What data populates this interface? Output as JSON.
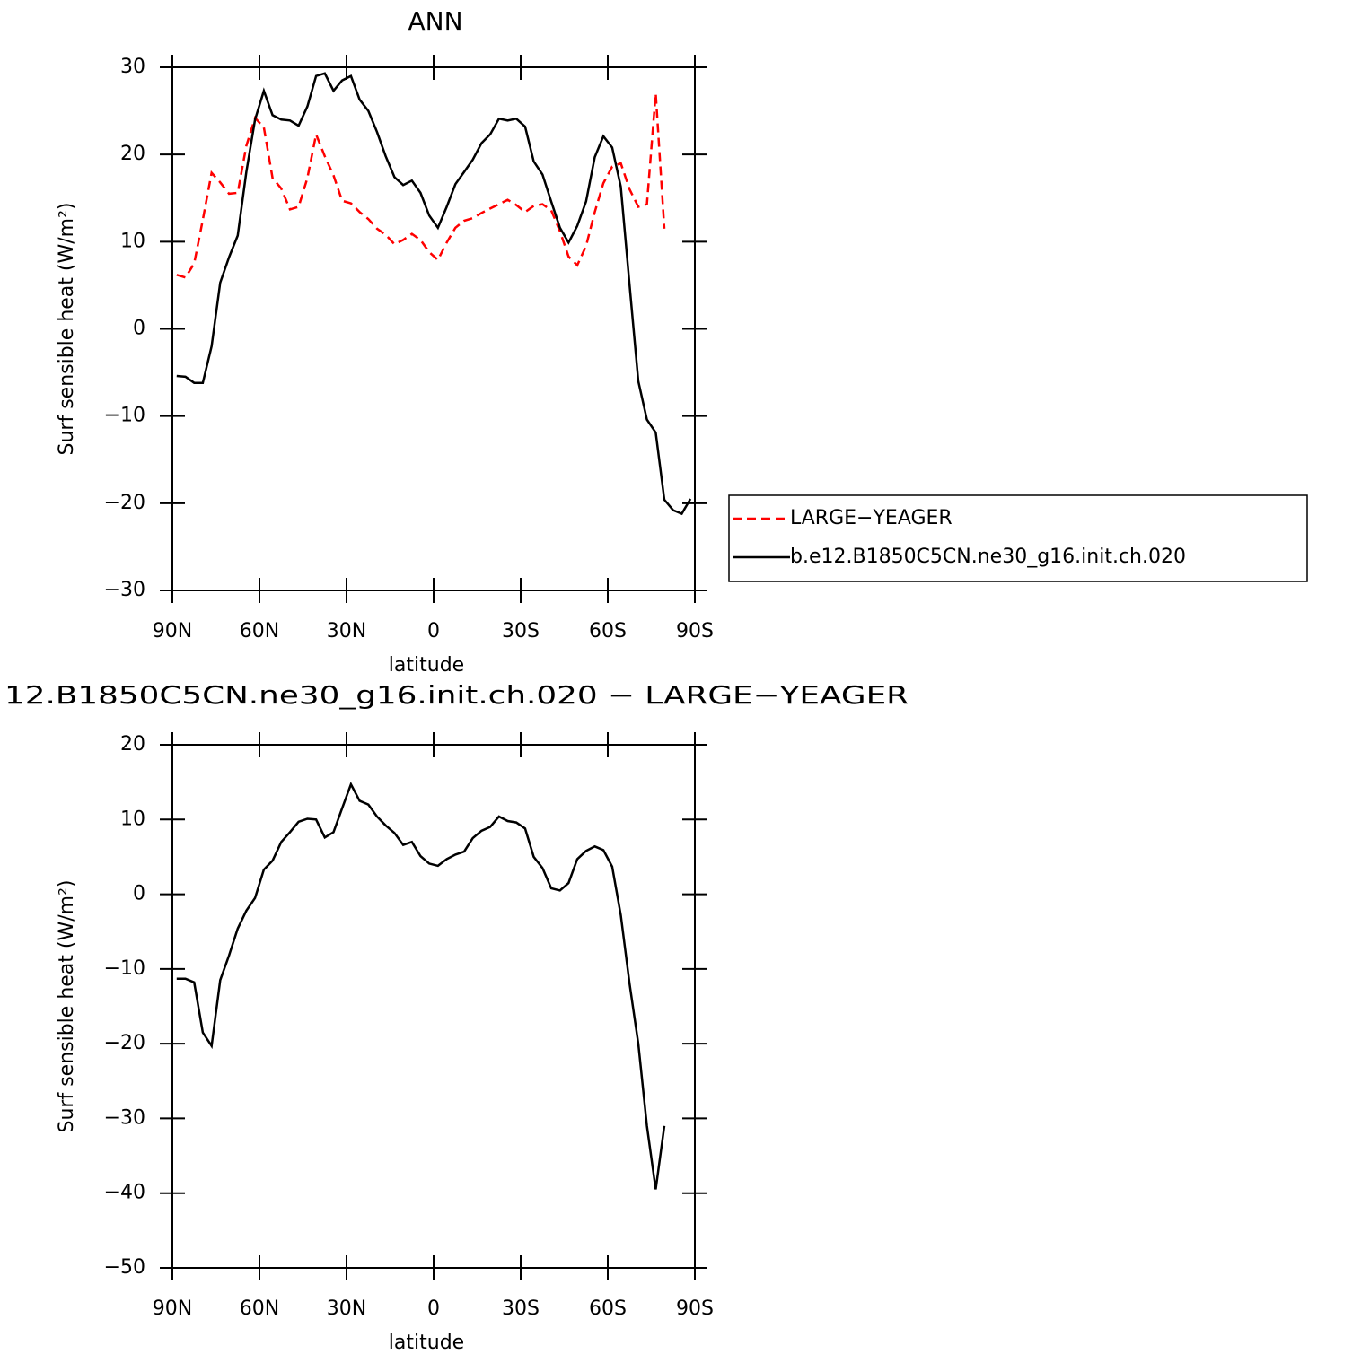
{
  "chart_data": [
    {
      "type": "line",
      "title": "ANN",
      "x_label": "latitude",
      "y_label": "Surf sensible heat (W/m²)",
      "x": [
        88.5,
        85.5,
        82.5,
        79.5,
        76.5,
        73.5,
        70.5,
        67.5,
        64.5,
        61.5,
        58.5,
        55.5,
        52.5,
        49.5,
        46.5,
        43.5,
        40.5,
        37.5,
        34.5,
        31.5,
        28.5,
        25.5,
        22.5,
        19.5,
        16.5,
        13.5,
        10.5,
        7.5,
        4.5,
        1.5,
        -1.5,
        -4.5,
        -7.5,
        -10.5,
        -13.5,
        -16.5,
        -19.5,
        -22.5,
        -25.5,
        -28.5,
        -31.5,
        -34.5,
        -37.5,
        -40.5,
        -43.5,
        -46.5,
        -49.5,
        -52.5,
        -55.5,
        -58.5,
        -61.5,
        -64.5,
        -67.5,
        -70.5,
        -73.5,
        -76.5,
        -79.5,
        -82.5,
        -85.5,
        -88.5
      ],
      "series": [
        {
          "name": "LARGE−YEAGER",
          "color": "#ff0000",
          "linestyle": "dashed",
          "values": [
            6.2,
            5.9,
            7.5,
            12.5,
            17.9,
            16.8,
            15.5,
            15.6,
            21,
            24.2,
            23.1,
            17.3,
            16.1,
            13.7,
            14,
            17.3,
            22.3,
            19.8,
            17.6,
            14.7,
            14.4,
            13.4,
            12.6,
            11.5,
            10.8,
            9.7,
            10.2,
            10.9,
            10.2,
            8.8,
            7.9,
            9.9,
            11.6,
            12.4,
            12.7,
            13.3,
            13.8,
            14.3,
            14.8,
            14.2,
            13.4,
            14.1,
            14.3,
            13.6,
            11.2,
            8.3,
            7.3,
            9.5,
            13.4,
            16.7,
            18.6,
            19,
            16,
            14,
            14.3,
            27,
            11.5,
            null,
            null,
            null
          ]
        },
        {
          "name": "b.e12.B1850C5CN.ne30_g16.init.ch.020",
          "color": "#000000",
          "linestyle": "solid",
          "values": [
            -5.4,
            -5.5,
            -6.2,
            -6.2,
            -2,
            5.3,
            8.2,
            10.7,
            18,
            24,
            27.3,
            24.5,
            24,
            23.9,
            23.3,
            25.5,
            29,
            29.3,
            27.3,
            28.5,
            29,
            26.3,
            25,
            22.6,
            19.8,
            17.4,
            16.5,
            17,
            15.6,
            13,
            11.6,
            14,
            16.6,
            18,
            19.4,
            21.3,
            22.3,
            24.1,
            23.9,
            24.1,
            23.2,
            19.2,
            17.7,
            14.6,
            11.6,
            9.9,
            11.8,
            14.6,
            19.7,
            22.1,
            20.8,
            16.3,
            5,
            -6,
            -10.4,
            -11.9,
            -19.6,
            -20.8,
            -21.2,
            -19.5
          ]
        }
      ],
      "xlim": [
        90,
        -90
      ],
      "xticks": [
        {
          "value": 90,
          "label": "90N"
        },
        {
          "value": 60,
          "label": "60N"
        },
        {
          "value": 30,
          "label": "30N"
        },
        0,
        {
          "value": -30,
          "label": "30S"
        },
        {
          "value": -60,
          "label": "60S"
        },
        {
          "value": -90,
          "label": "90S"
        }
      ],
      "ylim": [
        -30,
        30
      ],
      "yticks": [
        {
          "value": -30,
          "label": "−30"
        },
        {
          "value": -20,
          "label": "−20"
        },
        {
          "value": -10,
          "label": "−10"
        },
        0,
        10,
        20,
        30
      ],
      "legend": "right"
    },
    {
      "type": "line",
      "title": "12.B1850C5CN.ne30_g16.init.ch.020 − LARGE−YEAGER",
      "x_label": "latitude",
      "y_label": "Surf sensible heat (W/m²)",
      "x": [
        88.5,
        85.5,
        82.5,
        79.5,
        76.5,
        73.5,
        70.5,
        67.5,
        64.5,
        61.5,
        58.5,
        55.5,
        52.5,
        49.5,
        46.5,
        43.5,
        40.5,
        37.5,
        34.5,
        31.5,
        28.5,
        25.5,
        22.5,
        19.5,
        16.5,
        13.5,
        10.5,
        7.5,
        4.5,
        1.5,
        -1.5,
        -4.5,
        -7.5,
        -10.5,
        -13.5,
        -16.5,
        -19.5,
        -22.5,
        -25.5,
        -28.5,
        -31.5,
        -34.5,
        -37.5,
        -40.5,
        -43.5,
        -46.5,
        -49.5,
        -52.5,
        -55.5,
        -58.5,
        -61.5,
        -64.5,
        -67.5,
        -70.5,
        -73.5,
        -76.5,
        -79.5,
        -82.5,
        -85.5,
        -88.5
      ],
      "series": [
        {
          "color": "#000000",
          "linestyle": "solid",
          "values": [
            -11.3,
            -11.3,
            -11.8,
            -18.5,
            -20.3,
            -11.5,
            -8.2,
            -4.6,
            -2.2,
            -0.5,
            3.3,
            4.5,
            7,
            8.3,
            9.7,
            10.1,
            10,
            7.6,
            8.3,
            11.5,
            14.7,
            12.5,
            12,
            10.4,
            9.2,
            8.2,
            6.6,
            7,
            5.1,
            4.1,
            3.8,
            4.7,
            5.3,
            5.7,
            7.5,
            8.5,
            9,
            10.4,
            9.8,
            9.6,
            8.8,
            5,
            3.5,
            0.8,
            0.5,
            1.5,
            4.7,
            5.8,
            6.4,
            5.9,
            3.7,
            -2.8,
            -12,
            -20,
            -31,
            -39.5,
            -31,
            null,
            null,
            null
          ]
        }
      ],
      "xlim": [
        90,
        -90
      ],
      "xticks": [
        {
          "value": 90,
          "label": "90N"
        },
        {
          "value": 60,
          "label": "60N"
        },
        {
          "value": 30,
          "label": "30N"
        },
        0,
        {
          "value": -30,
          "label": "30S"
        },
        {
          "value": -60,
          "label": "60S"
        },
        {
          "value": -90,
          "label": "90S"
        }
      ],
      "ylim": [
        -50,
        20
      ],
      "yticks": [
        {
          "value": -50,
          "label": "−50"
        },
        {
          "value": -40,
          "label": "−40"
        },
        {
          "value": -30,
          "label": "−30"
        },
        {
          "value": -20,
          "label": "−20"
        },
        {
          "value": -10,
          "label": "−10"
        },
        0,
        10,
        20
      ]
    }
  ]
}
